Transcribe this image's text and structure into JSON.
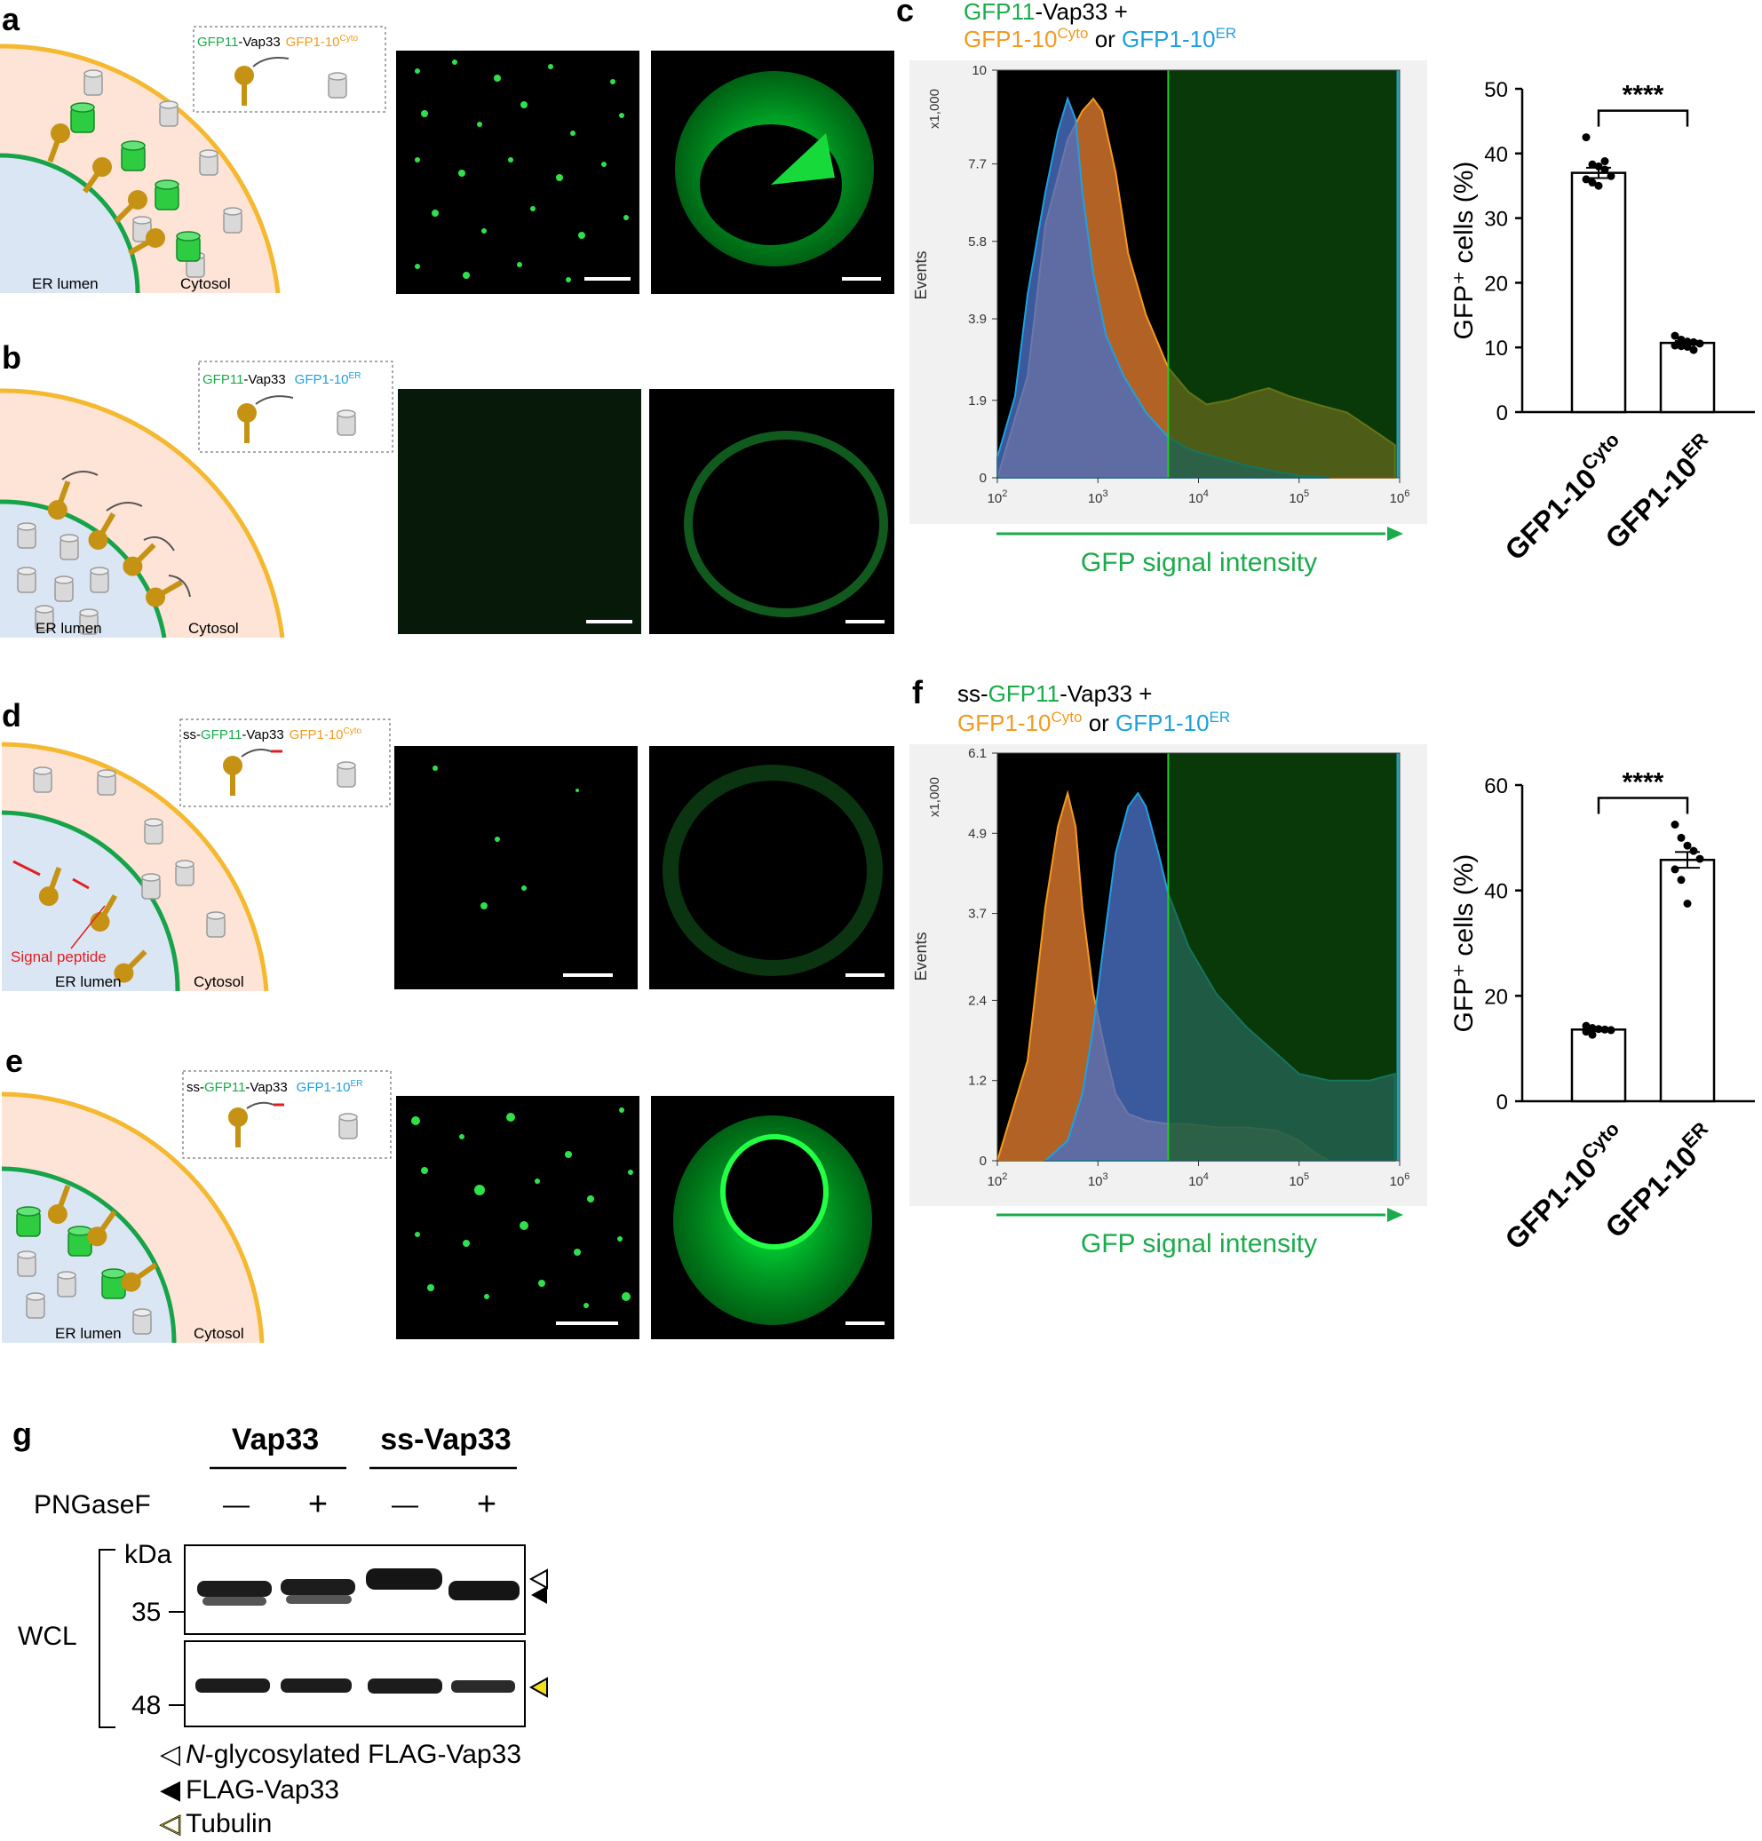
{
  "colors": {
    "gfp_green": "#1aab4a",
    "orange": "#f39a1e",
    "blue": "#1ea0e0",
    "membrane_yellow": "#f5b82e",
    "er_green": "#16a34a",
    "cytosol": "#fde4d6",
    "er_lumen": "#dbe6f5",
    "signal_red": "#e02020"
  },
  "panels": {
    "a": {
      "letter": "a",
      "legend": {
        "gfp11": "GFP11",
        "vap": "-Vap33",
        "gfp110": "GFP1-10",
        "sup": "Cyto"
      },
      "er_lumen": "ER lumen",
      "cytosol": "Cytosol"
    },
    "b": {
      "letter": "b",
      "legend": {
        "gfp11": "GFP11",
        "vap": "-Vap33",
        "gfp110": "GFP1-10",
        "sup": "ER"
      },
      "er_lumen": "ER lumen",
      "cytosol": "Cytosol"
    },
    "d": {
      "letter": "d",
      "legend": {
        "ss": "ss-",
        "gfp11": "GFP11",
        "vap": "-Vap33",
        "gfp110": "GFP1-10",
        "sup": "Cyto"
      },
      "signal_peptide": "Signal peptide",
      "er_lumen": "ER lumen",
      "cytosol": "Cytosol"
    },
    "e": {
      "letter": "e",
      "legend": {
        "ss": "ss-",
        "gfp11": "GFP11",
        "vap": "-Vap33",
        "gfp110": "GFP1-10",
        "sup": "ER"
      },
      "er_lumen": "ER lumen",
      "cytosol": "Cytosol"
    },
    "c": {
      "letter": "c",
      "title_line1": {
        "a": "GFP11",
        "b": "-Vap33 +"
      },
      "title_line2": {
        "a": "GFP1-10",
        "a_sup": "Cyto",
        "b": " or ",
        "c": "GFP1-10",
        "c_sup": "ER"
      },
      "y_unit": "x1,000",
      "y_label": "Events",
      "x_label": "GFP signal intensity"
    },
    "f": {
      "letter": "f",
      "title_line1": {
        "ss": "ss-",
        "a": "GFP11",
        "b": "-Vap33 +"
      },
      "title_line2": {
        "a": "GFP1-10",
        "a_sup": "Cyto",
        "b": " or ",
        "c": "GFP1-10",
        "c_sup": "ER"
      },
      "y_unit": "x1,000",
      "y_label": "Events",
      "x_label": "GFP signal intensity"
    },
    "g": {
      "letter": "g",
      "group1": "Vap33",
      "group2": "ss-Vap33",
      "treatment": "PNGaseF",
      "lanes": [
        "—",
        "+",
        "—",
        "+"
      ],
      "kda": "kDa",
      "mw_35": "35",
      "mw_48": "48",
      "wcl": "WCL",
      "legend": [
        {
          "symbol": "◁",
          "italic": "N",
          "text": "-glycosylated FLAG-Vap33"
        },
        {
          "symbol": "◀",
          "text": "FLAG-Vap33"
        },
        {
          "symbol": "◁",
          "text": "Tubulin"
        }
      ]
    }
  },
  "chart_data": [
    {
      "id": "c",
      "type": "area",
      "title": "GFP11-Vap33 + GFP1-10Cyto or GFP1-10ER",
      "xlabel": "GFP signal intensity",
      "ylabel": "Events",
      "x_scale": "log",
      "xlim": [
        100,
        1000000
      ],
      "x_ticks": [
        "10²",
        "10³",
        "10⁴",
        "10⁵",
        "10⁶"
      ],
      "ylim": [
        0,
        10
      ],
      "y_ticks": [
        0,
        1.9,
        3.9,
        5.8,
        7.7,
        10
      ],
      "gate_min": 5000,
      "series": [
        {
          "name": "GFP1-10Cyto",
          "color": "#f39a1e",
          "x": [
            100,
            200,
            300,
            500,
            700,
            900,
            1100,
            1500,
            2000,
            3000,
            5000,
            8000,
            12000,
            20000,
            35000,
            50000,
            80000,
            150000,
            300000,
            600000,
            900000
          ],
          "y": [
            0,
            2.5,
            6.2,
            8.3,
            9.0,
            9.3,
            9.0,
            7.5,
            5.5,
            4.0,
            2.7,
            2.1,
            1.8,
            1.9,
            2.1,
            2.2,
            2.0,
            1.8,
            1.6,
            1.1,
            0.8
          ]
        },
        {
          "name": "GFP1-10ER",
          "color": "#1ea0e0",
          "x": [
            100,
            150,
            200,
            300,
            400,
            500,
            600,
            700,
            900,
            1200,
            1800,
            3000,
            5000,
            8000,
            15000,
            30000,
            60000,
            100000,
            200000
          ],
          "y": [
            0.5,
            2.0,
            4.5,
            7.0,
            8.5,
            9.3,
            8.8,
            7.0,
            5.0,
            3.5,
            2.5,
            1.6,
            1.0,
            0.7,
            0.5,
            0.3,
            0.15,
            0.05,
            0
          ]
        }
      ]
    },
    {
      "id": "f",
      "type": "area",
      "title": "ss-GFP11-Vap33 + GFP1-10Cyto or GFP1-10ER",
      "xlabel": "GFP signal intensity",
      "ylabel": "Events",
      "x_scale": "log",
      "xlim": [
        100,
        1000000
      ],
      "x_ticks": [
        "10²",
        "10³",
        "10⁴",
        "10⁵",
        "10⁶"
      ],
      "ylim": [
        0,
        6.1
      ],
      "y_ticks": [
        0,
        1.2,
        2.4,
        3.7,
        4.9,
        6.1
      ],
      "gate_min": 5000,
      "series": [
        {
          "name": "GFP1-10Cyto",
          "color": "#f39a1e",
          "x": [
            100,
            200,
            300,
            400,
            500,
            600,
            700,
            900,
            1200,
            1500,
            2000,
            3000,
            5000,
            8000,
            15000,
            30000,
            60000,
            100000,
            150000,
            200000
          ],
          "y": [
            0,
            1.5,
            3.8,
            5.0,
            5.5,
            5.0,
            3.8,
            2.5,
            1.6,
            1.0,
            0.7,
            0.6,
            0.55,
            0.55,
            0.5,
            0.5,
            0.45,
            0.3,
            0.1,
            0
          ]
        },
        {
          "name": "GFP1-10ER",
          "color": "#1ea0e0",
          "x": [
            300,
            500,
            700,
            900,
            1200,
            1500,
            2000,
            2500,
            3000,
            4000,
            5000,
            8000,
            15000,
            30000,
            60000,
            100000,
            200000,
            500000,
            900000
          ],
          "y": [
            0,
            0.3,
            1.0,
            2.0,
            3.5,
            4.6,
            5.3,
            5.5,
            5.3,
            4.6,
            4.0,
            3.2,
            2.5,
            2.0,
            1.6,
            1.3,
            1.2,
            1.2,
            1.3
          ]
        }
      ]
    },
    {
      "id": "c_bar",
      "type": "bar",
      "ylabel": "GFP⁺ cells (%)",
      "ylim": [
        0,
        50
      ],
      "y_ticks": [
        0,
        10,
        20,
        30,
        40,
        50
      ],
      "categories": [
        "GFP1-10Cyto",
        "GFP1-10ER"
      ],
      "values": [
        37,
        10.7
      ],
      "error": [
        0.8,
        0.3
      ],
      "points": [
        [
          42.5,
          38.3,
          38,
          37.5,
          36.5,
          36,
          35.5,
          35,
          38.8
        ],
        [
          11.8,
          11.2,
          10.9,
          10.8,
          10.6,
          10.3,
          10.2,
          10.1,
          9.6
        ]
      ],
      "significance": "****"
    },
    {
      "id": "f_bar",
      "type": "bar",
      "ylabel": "GFP⁺ cells (%)",
      "ylim": [
        0,
        60
      ],
      "y_ticks": [
        0,
        20,
        40,
        60
      ],
      "categories": [
        "GFP1-10Cyto",
        "GFP1-10ER"
      ],
      "values": [
        13.6,
        45.8
      ],
      "error": [
        0.3,
        1.5
      ],
      "points": [
        [
          14.3,
          13.9,
          13.7,
          13.6,
          13.5,
          13.2,
          12.6
        ],
        [
          52.5,
          50,
          48.5,
          47.5,
          46,
          44,
          42,
          37.5
        ]
      ],
      "significance": "****"
    }
  ]
}
